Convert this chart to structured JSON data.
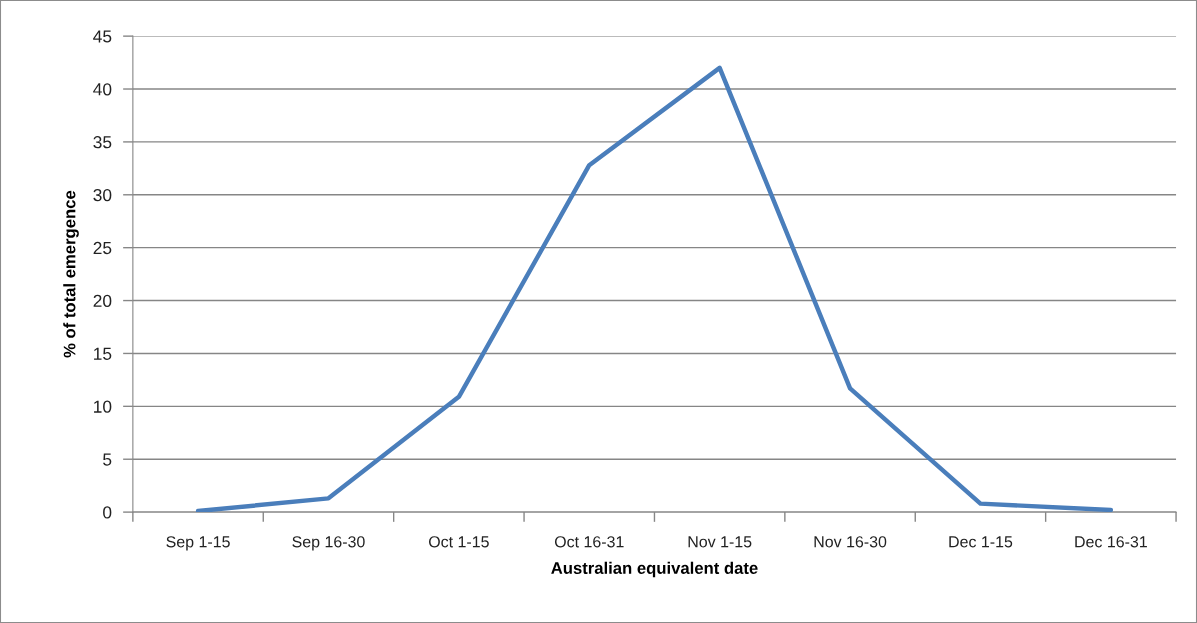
{
  "chart_data": {
    "type": "line",
    "xlabel": "Australian equivalent date",
    "ylabel": "% of total emergence",
    "categories": [
      "Sep 1-15",
      "Sep 16-30",
      "Oct 1-15",
      "Oct 16-31",
      "Nov 1-15",
      "Nov 16-30",
      "Dec 1-15",
      "Dec 16-31"
    ],
    "series": [
      {
        "color": "#4a7ebb",
        "values": [
          0.1,
          1.3,
          10.9,
          32.8,
          42.0,
          11.7,
          0.8,
          0.2
        ]
      }
    ],
    "ylim": [
      0,
      45
    ],
    "yticks": [
      0,
      5,
      10,
      15,
      20,
      25,
      30,
      35,
      40,
      45
    ],
    "grid": "y",
    "line_style": "solid"
  }
}
